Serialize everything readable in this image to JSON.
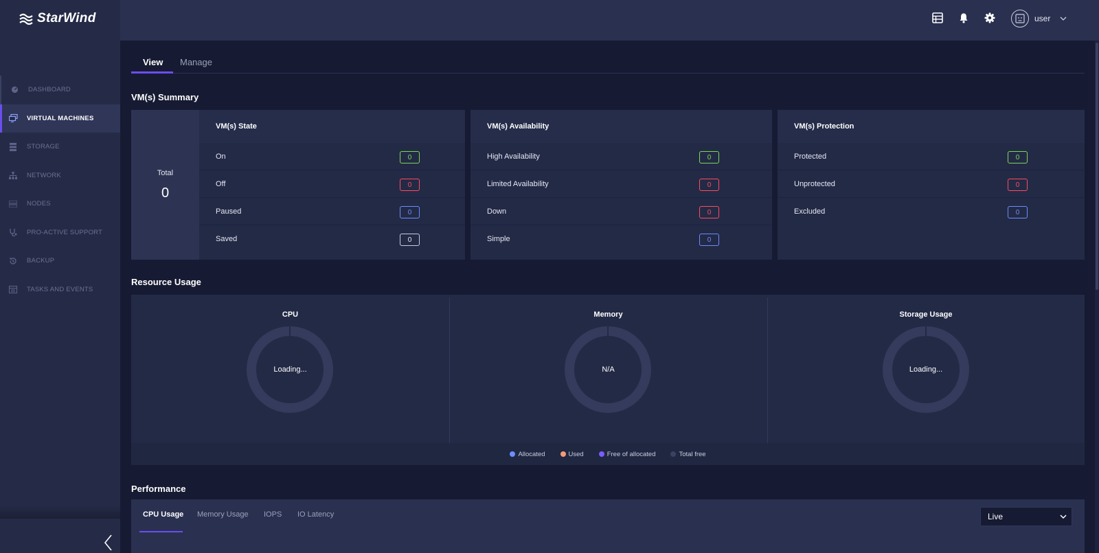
{
  "app": {
    "brand": "StarWind"
  },
  "sidebar": {
    "items": [
      {
        "label": "DASHBOARD",
        "icon": "dashboard-icon"
      },
      {
        "label": "VIRTUAL MACHINES",
        "icon": "vm-icon"
      },
      {
        "label": "STORAGE",
        "icon": "storage-icon"
      },
      {
        "label": "NETWORK",
        "icon": "network-icon"
      },
      {
        "label": "NODES",
        "icon": "nodes-icon"
      },
      {
        "label": "PRO-ACTIVE SUPPORT",
        "icon": "support-icon"
      },
      {
        "label": "BACKUP",
        "icon": "backup-icon"
      },
      {
        "label": "TASKS AND EVENTS",
        "icon": "tasks-icon"
      }
    ],
    "active_index": 1
  },
  "header": {
    "icons": [
      "list-icon",
      "bell-icon",
      "gear-icon"
    ],
    "user": "user"
  },
  "tabs": {
    "view": "View",
    "manage": "Manage"
  },
  "summary": {
    "title": "VM(s) Summary",
    "total_label": "Total",
    "total_value": "0",
    "state": {
      "title": "VM(s) State",
      "rows": [
        {
          "label": "On",
          "value": "0",
          "status": "green"
        },
        {
          "label": "Off",
          "value": "0",
          "status": "red"
        },
        {
          "label": "Paused",
          "value": "0",
          "status": "blue"
        },
        {
          "label": "Saved",
          "value": "0",
          "status": "white"
        }
      ]
    },
    "availability": {
      "title": "VM(s) Availability",
      "rows": [
        {
          "label": "High Availability",
          "value": "0",
          "status": "green"
        },
        {
          "label": "Limited Availability",
          "value": "0",
          "status": "red"
        },
        {
          "label": "Down",
          "value": "0",
          "status": "red"
        },
        {
          "label": "Simple",
          "value": "0",
          "status": "blue"
        }
      ]
    },
    "protection": {
      "title": "VM(s) Protection",
      "rows": [
        {
          "label": "Protected",
          "value": "0",
          "status": "green"
        },
        {
          "label": "Unprotected",
          "value": "0",
          "status": "red"
        },
        {
          "label": "Excluded",
          "value": "0",
          "status": "blue"
        }
      ]
    }
  },
  "resource": {
    "title": "Resource Usage",
    "cpu": {
      "title": "CPU",
      "status": "Loading..."
    },
    "memory": {
      "title": "Memory",
      "status": "N/A"
    },
    "storage": {
      "title": "Storage Usage",
      "status": "Loading..."
    },
    "legend": [
      {
        "label": "Allocated",
        "color": "#6f8cff"
      },
      {
        "label": "Used",
        "color": "#f29a7a"
      },
      {
        "label": "Free of allocated",
        "color": "#7b5cff"
      },
      {
        "label": "Total free",
        "color": "#3a4163"
      }
    ]
  },
  "performance": {
    "title": "Performance",
    "tabs": [
      "CPU Usage",
      "Memory Usage",
      "IOPS",
      "IO Latency"
    ],
    "range": "Live"
  },
  "colors": {
    "accent": "#6c4df0",
    "green": "#7ed957",
    "red": "#ff4d5e",
    "blue": "#6f8cff"
  }
}
